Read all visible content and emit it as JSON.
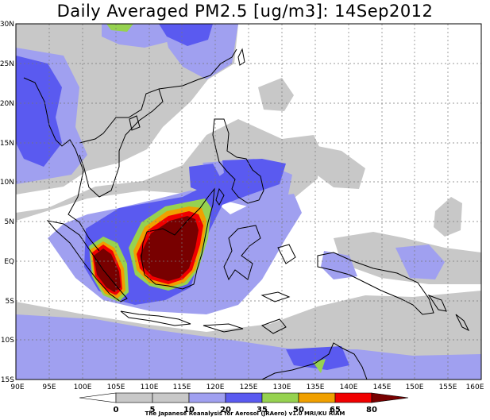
{
  "title": "Daily Averaged PM2.5 [ug/m3]: 14Sep2012",
  "map": {
    "lon_range": [
      90,
      160
    ],
    "lat_range": [
      -15,
      30
    ],
    "lon_ticks": [
      "90E",
      "95E",
      "100E",
      "105E",
      "110E",
      "115E",
      "120E",
      "125E",
      "130E",
      "135E",
      "140E",
      "145E",
      "150E",
      "155E",
      "160E"
    ],
    "lat_ticks": [
      "30N",
      "25N",
      "20N",
      "15N",
      "10N",
      "5N",
      "EQ",
      "5S",
      "10S",
      "15S"
    ],
    "grid": "dashed"
  },
  "colorbar": {
    "labels": [
      "0",
      "5",
      "10",
      "20",
      "35",
      "50",
      "65",
      "80"
    ],
    "colors": [
      "#ffffff",
      "#c8c8c8",
      "#a0a0f0",
      "#5a5af0",
      "#96d250",
      "#f0a000",
      "#f00000",
      "#780000"
    ]
  },
  "footer": "The Japanese Reanalysis for Aerosol (JRAero) v1.0 MRI/KU RIAM"
}
